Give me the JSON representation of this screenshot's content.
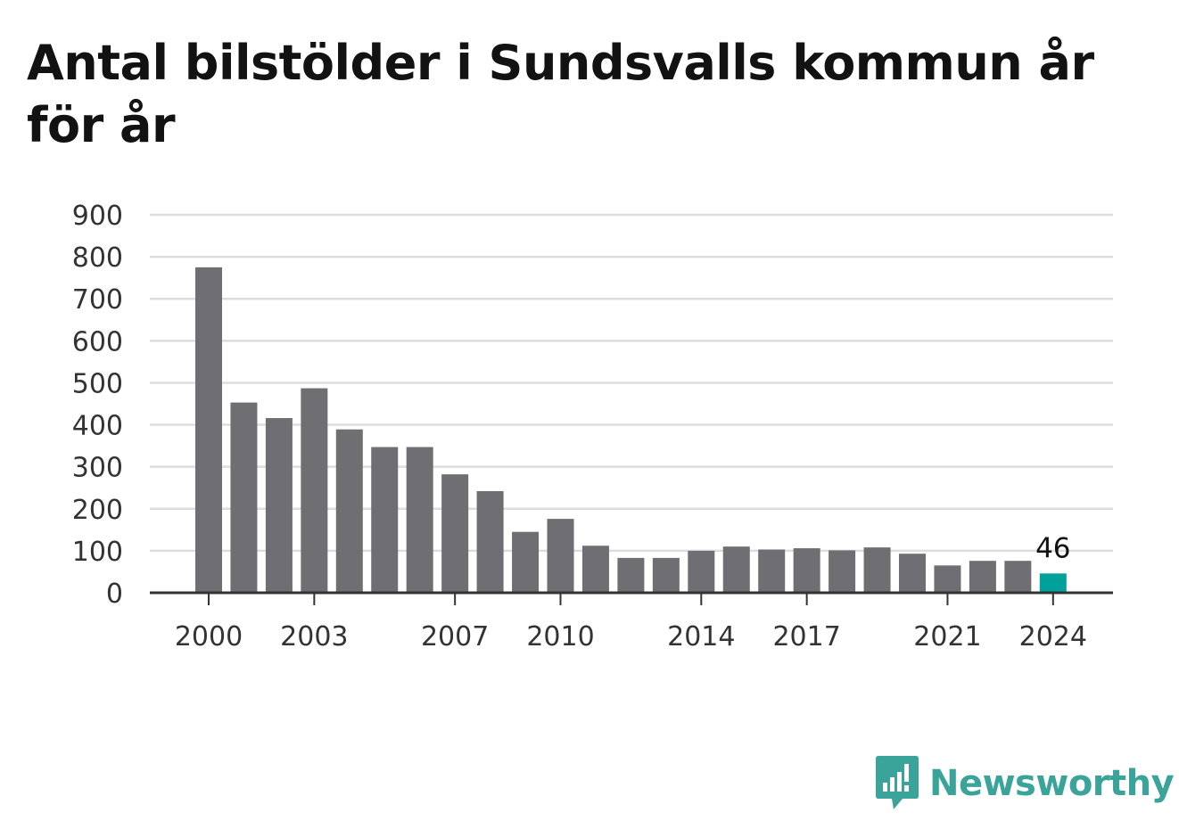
{
  "title": "Antal bilstölder i Sundsvalls kommun år för år",
  "brand": {
    "name": "Newsworthy",
    "logo_icon": "chart-speech-bubble-icon",
    "color": "#3aa39a"
  },
  "chart_data": {
    "type": "bar",
    "title": "Antal bilstölder i Sundsvalls kommun år för år",
    "xlabel": "",
    "ylabel": "",
    "categories": [
      "2000",
      "2001",
      "2002",
      "2003",
      "2004",
      "2005",
      "2006",
      "2007",
      "2008",
      "2009",
      "2010",
      "2011",
      "2012",
      "2013",
      "2014",
      "2015",
      "2016",
      "2017",
      "2018",
      "2019",
      "2020",
      "2021",
      "2022",
      "2023",
      "2024"
    ],
    "values": [
      775,
      453,
      416,
      487,
      389,
      347,
      347,
      282,
      242,
      145,
      176,
      112,
      83,
      83,
      100,
      110,
      103,
      106,
      101,
      108,
      93,
      65,
      76,
      76,
      46
    ],
    "x_tick_labels": [
      "2000",
      "2003",
      "2007",
      "2010",
      "2014",
      "2017",
      "2021",
      "2024"
    ],
    "y_ticks": [
      0,
      100,
      200,
      300,
      400,
      500,
      600,
      700,
      800,
      900
    ],
    "ylim": [
      0,
      900
    ],
    "grid": true,
    "legend": "none",
    "highlight": {
      "category": "2024",
      "label": "46",
      "color": "#00a19a"
    },
    "colors": {
      "bar": "#6e6e73",
      "highlight": "#00a19a",
      "grid": "#dddddd",
      "axis": "#333333"
    }
  }
}
